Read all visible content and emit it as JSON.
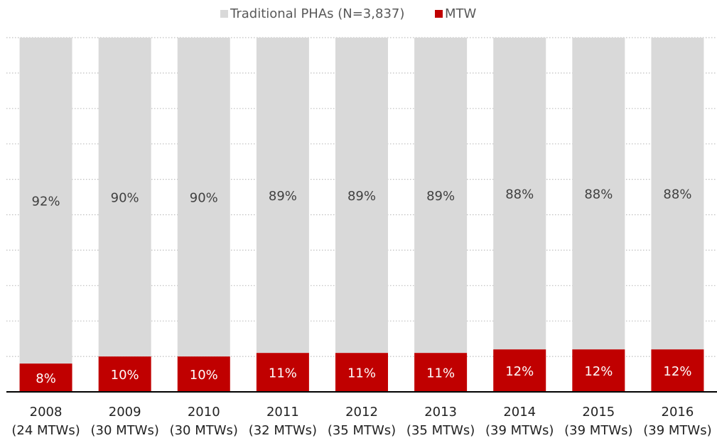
{
  "chart_data": {
    "type": "stacked_bar",
    "categories": [
      "2008\n(24 MTWs)",
      "2009\n(30 MTWs)",
      "2010\n(30 MTWs)",
      "2011\n(32 MTWs)",
      "2012\n(35 MTWs)",
      "2013\n(35 MTWs)",
      "2014\n(39 MTWs)",
      "2015\n(39 MTWs)",
      "2016\n(39 MTWs)"
    ],
    "series": [
      {
        "name": "MTW",
        "color": "#c00000",
        "values": [
          8,
          10,
          10,
          11,
          11,
          11,
          12,
          12,
          12
        ],
        "value_labels": [
          "8%",
          "10%",
          "10%",
          "11%",
          "11%",
          "11%",
          "12%",
          "12%",
          "12%"
        ]
      },
      {
        "name": "Traditional PHAs (N=3,837)",
        "color": "#d9d9d9",
        "values": [
          92,
          90,
          90,
          89,
          89,
          89,
          88,
          88,
          88
        ],
        "value_labels": [
          "92%",
          "90%",
          "90%",
          "89%",
          "89%",
          "89%",
          "88%",
          "88%",
          "88%"
        ]
      }
    ],
    "ylim": [
      0,
      100
    ],
    "yticks": [
      0,
      10,
      20,
      30,
      40,
      50,
      60,
      70,
      80,
      90,
      100
    ],
    "grid": true,
    "legend": "top"
  }
}
